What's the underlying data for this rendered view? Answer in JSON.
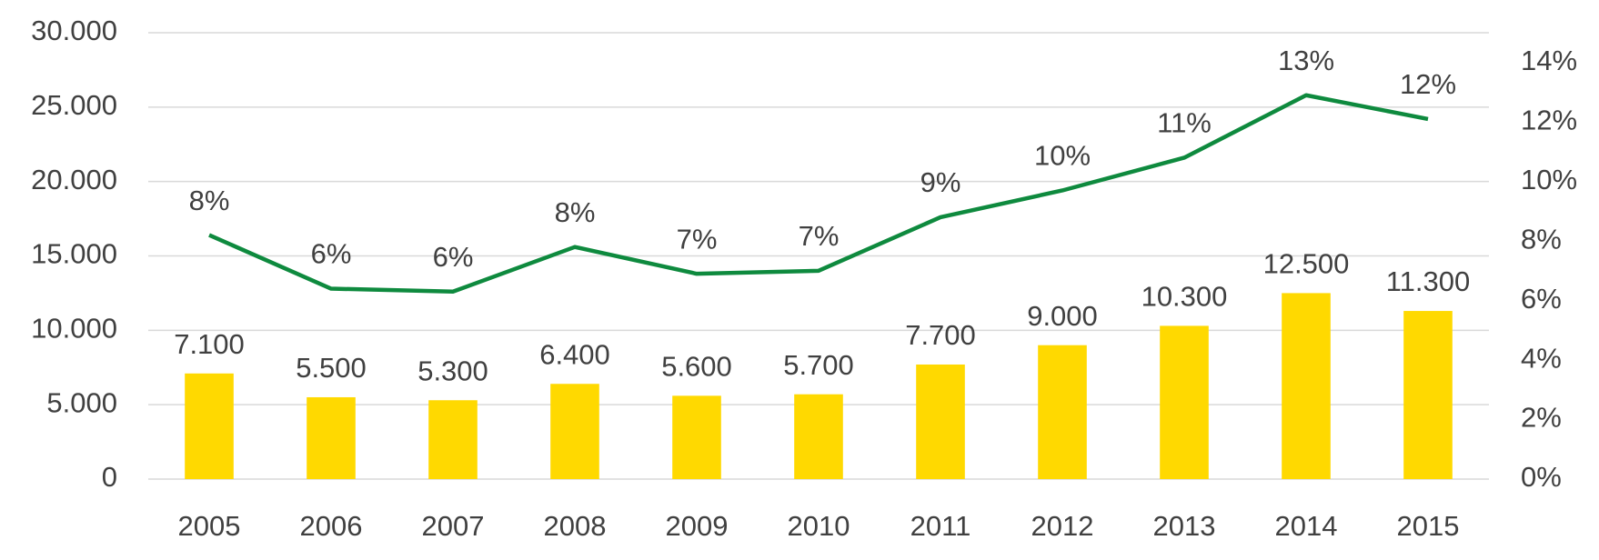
{
  "chart_data": {
    "type": "bar-line",
    "categories": [
      "2005",
      "2006",
      "2007",
      "2008",
      "2009",
      "2010",
      "2011",
      "2012",
      "2013",
      "2014",
      "2015"
    ],
    "series": [
      {
        "type": "bar",
        "color": "#ffd900",
        "values": [
          7100,
          5500,
          5300,
          6400,
          5600,
          5700,
          7700,
          9000,
          10300,
          12500,
          11300
        ],
        "value_labels": [
          "7.100",
          "5.500",
          "5.300",
          "6.400",
          "5.600",
          "5.700",
          "7.700",
          "9.000",
          "10.300",
          "12.500",
          "11.300"
        ]
      },
      {
        "type": "line",
        "axis": "y2",
        "color": "#0e8a3e",
        "values": [
          8.2,
          6.4,
          6.3,
          7.8,
          6.9,
          7.0,
          8.8,
          9.7,
          10.8,
          12.9,
          12.1
        ],
        "value_labels": [
          "8%",
          "6%",
          "6%",
          "8%",
          "7%",
          "7%",
          "9%",
          "10%",
          "11%",
          "13%",
          "12%"
        ]
      }
    ],
    "ylim": [
      0,
      30000
    ],
    "yticks": [
      {
        "value": 0,
        "label": "0"
      },
      {
        "value": 5000,
        "label": "5.000"
      },
      {
        "value": 10000,
        "label": "10.000"
      },
      {
        "value": 15000,
        "label": "15.000"
      },
      {
        "value": 20000,
        "label": "20.000"
      },
      {
        "value": 25000,
        "label": "25.000"
      },
      {
        "value": 30000,
        "label": "30.000"
      }
    ],
    "y2lim": [
      0,
      15
    ],
    "y2ticks": [
      {
        "value": 0,
        "label": "0%"
      },
      {
        "value": 2,
        "label": "2%"
      },
      {
        "value": 4,
        "label": "4%"
      },
      {
        "value": 6,
        "label": "6%"
      },
      {
        "value": 8,
        "label": "8%"
      },
      {
        "value": 10,
        "label": "10%"
      },
      {
        "value": 12,
        "label": "12%"
      },
      {
        "value": 14,
        "label": "14%"
      }
    ],
    "grid": true
  }
}
